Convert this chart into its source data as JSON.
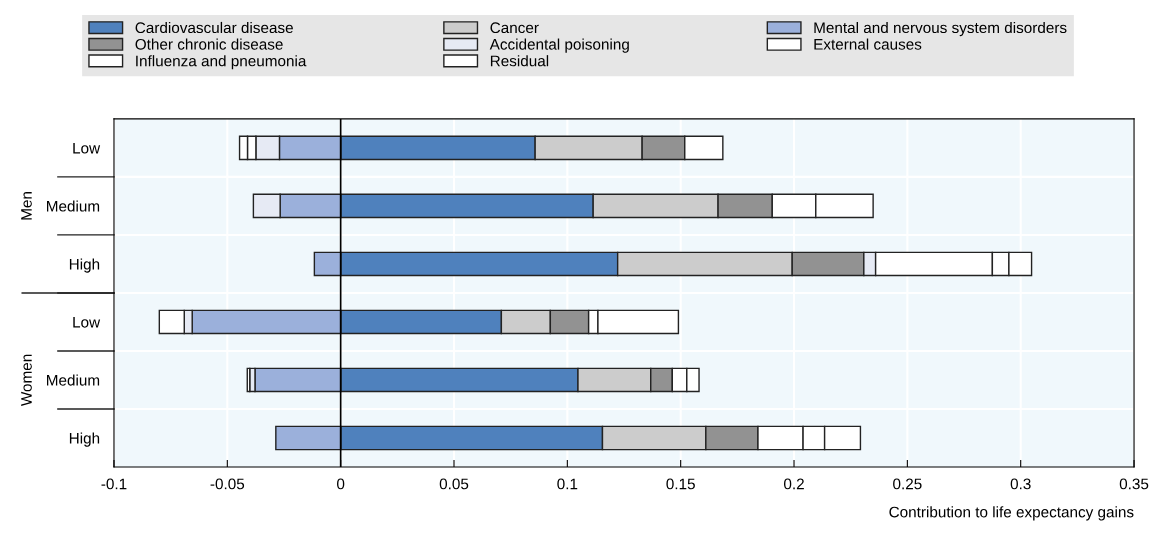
{
  "chart_data": {
    "type": "bar",
    "orientation": "horizontal",
    "stacked": true,
    "categories": [
      "Low",
      "Medium",
      "High",
      "Low",
      "Medium",
      "High"
    ],
    "annotations": [
      "Men",
      "Women"
    ],
    "xlabel": "Contribution to life expectancy gains",
    "xlim": [
      -0.1,
      0.35
    ],
    "xticks": [
      -0.1,
      -0.05,
      0,
      0.05,
      0.1,
      0.15,
      0.2,
      0.25,
      0.3,
      0.35
    ],
    "grid": "x",
    "legend": "top",
    "ref_lines": [
      {
        "axis": "x",
        "value": 0,
        "color": "#000000"
      }
    ],
    "series": [
      {
        "name": "Cardiovascular disease",
        "color": "#4f81bd",
        "values": [
          0.0858,
          0.1114,
          0.1222,
          0.0709,
          0.1047,
          0.1155
        ]
      },
      {
        "name": "Cancer",
        "color": "#cccccc",
        "values": [
          0.0472,
          0.0551,
          0.077,
          0.0216,
          0.0321,
          0.0456
        ]
      },
      {
        "name": "Mental and nervous system disorders",
        "color": "#9bb0db",
        "values": [
          -0.027,
          -0.0267,
          -0.0116,
          -0.0655,
          -0.0378,
          -0.0286
        ]
      },
      {
        "name": "Other chronic disease",
        "color": "#929292",
        "values": [
          0.0188,
          0.0239,
          0.0316,
          0.0169,
          0.0095,
          0.023
        ]
      },
      {
        "name": "Accidental poisoning",
        "color": "#e6eaf4",
        "values": [
          -0.0104,
          -0.0118,
          0.0052,
          -0.0035,
          -0.0023,
          null
        ]
      },
      {
        "name": "External causes",
        "color": "#ffffff",
        "values": [
          0.0168,
          0.0192,
          0.0515,
          0.0041,
          0.0064,
          0.0199
        ]
      },
      {
        "name": "Influenza and pneumonia",
        "color": "#ffffff",
        "values": [
          -0.0037,
          null,
          0.0073,
          -0.011,
          -0.0011,
          0.0095
        ]
      },
      {
        "name": "Residual",
        "color": "#ffffff",
        "values": [
          -0.0035,
          0.0253,
          0.01,
          0.0355,
          0.0054,
          0.0158
        ]
      }
    ]
  }
}
